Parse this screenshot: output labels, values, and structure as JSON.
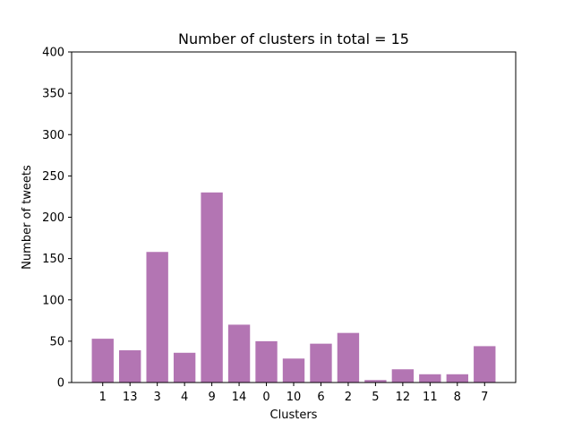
{
  "chart_data": {
    "type": "bar",
    "title": "Number of clusters in total = 15",
    "xlabel": "Clusters",
    "ylabel": "Number of tweets",
    "categories": [
      "1",
      "13",
      "3",
      "4",
      "9",
      "14",
      "0",
      "10",
      "6",
      "2",
      "5",
      "12",
      "11",
      "8",
      "7"
    ],
    "values": [
      53,
      39,
      158,
      36,
      230,
      70,
      50,
      29,
      47,
      60,
      3,
      16,
      10,
      10,
      44
    ],
    "ylim": [
      0,
      400
    ],
    "yticks": [
      0,
      50,
      100,
      150,
      200,
      250,
      300,
      350,
      400
    ],
    "grid": false,
    "bar_color": "#b375b3"
  }
}
